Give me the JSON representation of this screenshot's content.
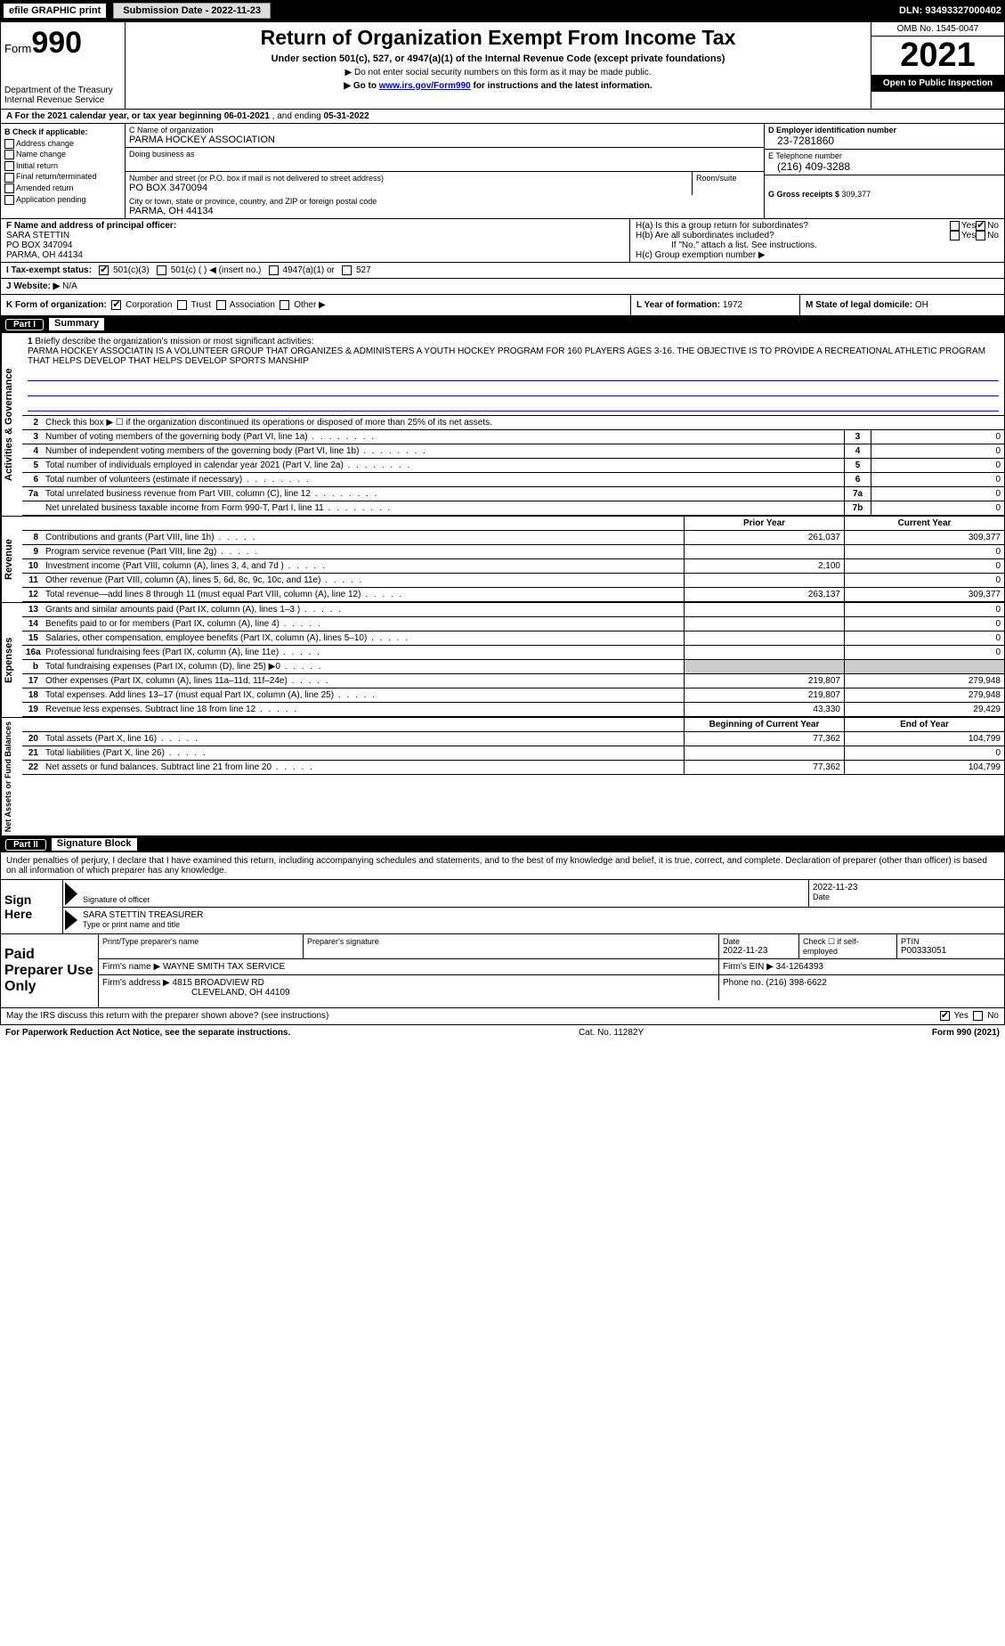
{
  "topbar": {
    "efile": "efile GRAPHIC print",
    "sub_label": "Submission Date - 2022-11-23",
    "dln": "DLN: 93493327000402"
  },
  "hdr": {
    "form_pre": "Form",
    "form_no": "990",
    "dept": "Department of the Treasury",
    "irs": "Internal Revenue Service",
    "title": "Return of Organization Exempt From Income Tax",
    "sub": "Under section 501(c), 527, or 4947(a)(1) of the Internal Revenue Code (except private foundations)",
    "nosnn": "▶ Do not enter social security numbers on this form as it may be made public.",
    "goto_pre": "▶ Go to ",
    "goto_link": "www.irs.gov/Form990",
    "goto_post": " for instructions and the latest information.",
    "omb": "OMB No. 1545-0047",
    "year": "2021",
    "open": "Open to Public Inspection"
  },
  "cal": {
    "a": "A For the 2021 calendar year, or tax year beginning ",
    "begin": "06-01-2021",
    "mid": "   , and ending ",
    "end": "05-31-2022"
  },
  "colb": {
    "hdr": "B Check if applicable:",
    "items": [
      "Address change",
      "Name change",
      "Initial return",
      "Final return/terminated",
      "Amended return",
      "Application pending"
    ]
  },
  "colc": {
    "c_label": "C Name of organization",
    "org": "PARMA HOCKEY ASSOCIATION",
    "dba": "Doing business as",
    "street_label": "Number and street (or P.O. box if mail is not delivered to street address)",
    "room": "Room/suite",
    "street": "PO BOX 3470094",
    "city_label": "City or town, state or province, country, and ZIP or foreign postal code",
    "city": "PARMA, OH  44134"
  },
  "colde": {
    "d_label": "D Employer identification number",
    "ein": "23-7281860",
    "e_label": "E Telephone number",
    "phone": "(216) 409-3288",
    "g_label": "G Gross receipts $ ",
    "gross": "309,377"
  },
  "f": {
    "label": "F Name and address of principal officer:",
    "l1": "SARA STETTIN",
    "l2": "PO BOX 347094",
    "l3": "PARMA, OH  44134"
  },
  "h": {
    "a": "H(a)  Is this a group return for subordinates?",
    "b": "H(b)  Are all subordinates included?",
    "bno": "If \"No,\" attach a list. See instructions.",
    "c": "H(c)  Group exemption number ▶",
    "yes": "Yes",
    "no": "No"
  },
  "i": {
    "label": "I  Tax-exempt status:",
    "o1": "501(c)(3)",
    "o2": "501(c) (   ) ◀ (insert no.)",
    "o3": "4947(a)(1) or",
    "o4": "527"
  },
  "j": {
    "label": "J  Website: ▶",
    "val": "  N/A"
  },
  "k": {
    "label": "K Form of organization:",
    "o1": "Corporation",
    "o2": "Trust",
    "o3": "Association",
    "o4": "Other ▶",
    "l": "L Year of formation: ",
    "lval": "1972",
    "m": "M State of legal domicile: ",
    "mval": "OH"
  },
  "parts": {
    "p1": "Part I",
    "p1t": "Summary",
    "p2": "Part II",
    "p2t": "Signature Block"
  },
  "sides": {
    "ag": "Activities & Governance",
    "rev": "Revenue",
    "exp": "Expenses",
    "na": "Net Assets or Fund Balances"
  },
  "mission": {
    "n": "1",
    "label": "Briefly describe the organization's mission or most significant activities:",
    "text": "PARMA HOCKEY ASSOCIATIN IS A VOLUNTEER GROUP THAT ORGANIZES & ADMINISTERS A YOUTH HOCKEY PROGRAM FOR 160 PLAYERS AGES 3-16. THE OBJECTIVE IS TO PROVIDE A RECREATIONAL ATHLETIC PROGRAM THAT HELPS DEVELOP THAT HELPS DEVELOP SPORTS MANSHIP"
  },
  "ag": {
    "r2": "Check this box ▶ ☐  if the organization discontinued its operations or disposed of more than 25% of its net assets.",
    "rows": [
      {
        "n": "3",
        "t": "Number of voting members of the governing body (Part VI, line 1a)",
        "b": "3",
        "v": "0"
      },
      {
        "n": "4",
        "t": "Number of independent voting members of the governing body (Part VI, line 1b)",
        "b": "4",
        "v": "0"
      },
      {
        "n": "5",
        "t": "Total number of individuals employed in calendar year 2021 (Part V, line 2a)",
        "b": "5",
        "v": "0"
      },
      {
        "n": "6",
        "t": "Total number of volunteers (estimate if necessary)",
        "b": "6",
        "v": "0"
      },
      {
        "n": "7a",
        "t": "Total unrelated business revenue from Part VIII, column (C), line 12",
        "b": "7a",
        "v": "0"
      },
      {
        "n": "",
        "t": "Net unrelated business taxable income from Form 990-T, Part I, line 11",
        "b": "7b",
        "v": "0"
      }
    ]
  },
  "cols": {
    "prior": "Prior Year",
    "curr": "Current Year",
    "boy": "Beginning of Current Year",
    "eoy": "End of Year"
  },
  "rev": [
    {
      "n": "8",
      "t": "Contributions and grants (Part VIII, line 1h)",
      "p": "261,037",
      "c": "309,377"
    },
    {
      "n": "9",
      "t": "Program service revenue (Part VIII, line 2g)",
      "p": "",
      "c": "0"
    },
    {
      "n": "10",
      "t": "Investment income (Part VIII, column (A), lines 3, 4, and 7d )",
      "p": "2,100",
      "c": "0"
    },
    {
      "n": "11",
      "t": "Other revenue (Part VIII, column (A), lines 5, 6d, 8c, 9c, 10c, and 11e)",
      "p": "",
      "c": "0"
    },
    {
      "n": "12",
      "t": "Total revenue—add lines 8 through 11 (must equal Part VIII, column (A), line 12)",
      "p": "263,137",
      "c": "309,377"
    }
  ],
  "exp": [
    {
      "n": "13",
      "t": "Grants and similar amounts paid (Part IX, column (A), lines 1–3 )",
      "p": "",
      "c": "0",
      "g": false
    },
    {
      "n": "14",
      "t": "Benefits paid to or for members (Part IX, column (A), line 4)",
      "p": "",
      "c": "0",
      "g": false
    },
    {
      "n": "15",
      "t": "Salaries, other compensation, employee benefits (Part IX, column (A), lines 5–10)",
      "p": "",
      "c": "0",
      "g": false
    },
    {
      "n": "16a",
      "t": "Professional fundraising fees (Part IX, column (A), line 11e)",
      "p": "",
      "c": "0",
      "g": false
    },
    {
      "n": "b",
      "t": "Total fundraising expenses (Part IX, column (D), line 25) ▶0",
      "p": "",
      "c": "",
      "g": true
    },
    {
      "n": "17",
      "t": "Other expenses (Part IX, column (A), lines 11a–11d, 11f–24e)",
      "p": "219,807",
      "c": "279,948",
      "g": false
    },
    {
      "n": "18",
      "t": "Total expenses. Add lines 13–17 (must equal Part IX, column (A), line 25)",
      "p": "219,807",
      "c": "279,948",
      "g": false
    },
    {
      "n": "19",
      "t": "Revenue less expenses. Subtract line 18 from line 12",
      "p": "43,330",
      "c": "29,429",
      "g": false
    }
  ],
  "na": [
    {
      "n": "20",
      "t": "Total assets (Part X, line 16)",
      "p": "77,362",
      "c": "104,799"
    },
    {
      "n": "21",
      "t": "Total liabilities (Part X, line 26)",
      "p": "",
      "c": "0"
    },
    {
      "n": "22",
      "t": "Net assets or fund balances. Subtract line 21 from line 20",
      "p": "77,362",
      "c": "104,799"
    }
  ],
  "sig": {
    "pen": "Under penalties of perjury, I declare that I have examined this return, including accompanying schedules and statements, and to the best of my knowledge and belief, it is true, correct, and complete. Declaration of preparer (other than officer) is based on all information of which preparer has any knowledge.",
    "sign": "Sign Here",
    "sigoff": "Signature of officer",
    "date": "Date",
    "dateval": "2022-11-23",
    "name": "SARA STETTIN TREASURER",
    "nametxt": "Type or print name and title"
  },
  "prep": {
    "lbl": "Paid Preparer Use Only",
    "h1": "Print/Type preparer's name",
    "h2": "Preparer's signature",
    "h3": "Date",
    "h3v": "2022-11-23",
    "h4": "Check ☐ if self-employed",
    "h5": "PTIN",
    "h5v": "P00333051",
    "firm": "Firm's name    ▶",
    "firmv": "WAYNE SMITH TAX SERVICE",
    "ein": "Firm's EIN ▶",
    "einv": "34-1264393",
    "addr": "Firm's address ▶",
    "addr1": "4815 BROADVIEW RD",
    "addr2": "CLEVELAND, OH  44109",
    "ph": "Phone no. ",
    "phv": "(216) 398-6622"
  },
  "last": {
    "q": "May the IRS discuss this return with the preparer shown above? (see instructions)",
    "y": "Yes",
    "n": "No"
  },
  "foot": {
    "l": "For Paperwork Reduction Act Notice, see the separate instructions.",
    "m": "Cat. No. 11282Y",
    "r": "Form 990 (2021)"
  }
}
